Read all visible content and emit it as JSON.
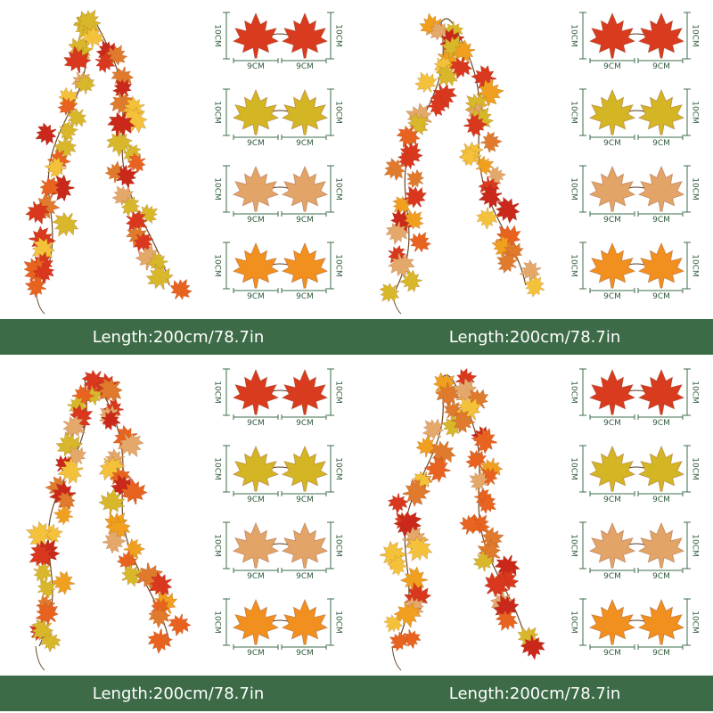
{
  "panels": [
    {
      "banner": "Length:200cm/78.7in",
      "rows": [
        {
          "height_left": "10CM",
          "height_right": "10CM",
          "widths": [
            "9CM",
            "9CM"
          ]
        },
        {
          "height_left": "10CM",
          "height_right": "10CM",
          "widths": [
            "9CM",
            "9CM"
          ]
        },
        {
          "height_left": "10CM",
          "height_right": "10CM",
          "widths": [
            "9CM",
            "9CM"
          ]
        },
        {
          "height_left": "10CM",
          "height_right": "10CM",
          "widths": [
            "9CM",
            "9CM"
          ]
        }
      ]
    },
    {
      "banner": "Length:200cm/78.7in",
      "rows": [
        {
          "height_left": "10CM",
          "height_right": "10CM",
          "widths": [
            "9CM",
            "9CM"
          ]
        },
        {
          "height_left": "10CM",
          "height_right": "10CM",
          "widths": [
            "9CM",
            "9CM"
          ]
        },
        {
          "height_left": "10CM",
          "height_right": "10CM",
          "widths": [
            "9CM",
            "9CM"
          ]
        },
        {
          "height_left": "10CM",
          "height_right": "10CM",
          "widths": [
            "9CM",
            "9CM"
          ]
        }
      ]
    },
    {
      "banner": "Length:200cm/78.7in",
      "rows": [
        {
          "height_left": "10CM",
          "height_right": "10CM",
          "widths": [
            "9CM",
            "9CM"
          ]
        },
        {
          "height_left": "10CM",
          "height_right": "10CM",
          "widths": [
            "9CM",
            "9CM"
          ]
        },
        {
          "height_left": "10CM",
          "height_right": "10CM",
          "widths": [
            "9CM",
            "9CM"
          ]
        },
        {
          "height_left": "10CM",
          "height_right": "10CM",
          "widths": [
            "9CM",
            "9CM"
          ]
        }
      ]
    },
    {
      "banner": "Length:200cm/78.7in",
      "rows": [
        {
          "height_left": "10CM",
          "height_right": "10CM",
          "widths": [
            "9CM",
            "9CM"
          ]
        },
        {
          "height_left": "10CM",
          "height_right": "10CM",
          "widths": [
            "9CM",
            "9CM"
          ]
        },
        {
          "height_left": "10CM",
          "height_right": "10CM",
          "widths": [
            "9CM",
            "9CM"
          ]
        },
        {
          "height_left": "10CM",
          "height_right": "10CM",
          "widths": [
            "9CM",
            "9CM"
          ]
        }
      ]
    }
  ]
}
